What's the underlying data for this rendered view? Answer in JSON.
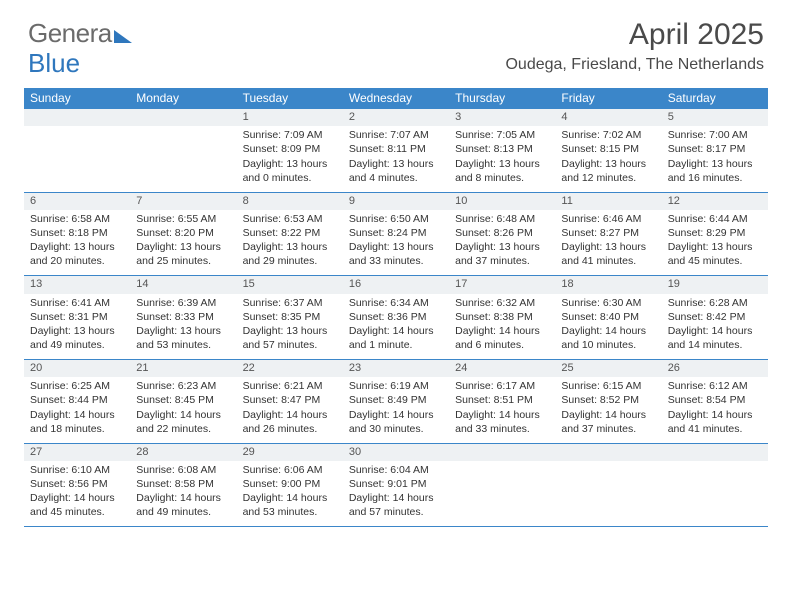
{
  "logo": {
    "text1": "Genera",
    "text2": "Blue"
  },
  "header": {
    "month_title": "April 2025",
    "location": "Oudega, Friesland, The Netherlands"
  },
  "style": {
    "header_bg": "#3b86c9",
    "header_text": "#ffffff",
    "daynum_bg": "#eef1f3",
    "border_color": "#3b86c9",
    "body_text": "#333333",
    "title_color": "#4a4a4a",
    "logo_blue": "#2f77bd",
    "page_bg": "#ffffff",
    "font_family": "Arial",
    "title_fontsize_pt": 22,
    "location_fontsize_pt": 12,
    "dayhead_fontsize_pt": 9,
    "cell_fontsize_pt": 8
  },
  "calendar": {
    "day_headers": [
      "Sunday",
      "Monday",
      "Tuesday",
      "Wednesday",
      "Thursday",
      "Friday",
      "Saturday"
    ],
    "start_day_index": 2,
    "days_in_month": 30,
    "cells": {
      "1": {
        "sunrise": "7:09 AM",
        "sunset": "8:09 PM",
        "daylight": "13 hours and 0 minutes."
      },
      "2": {
        "sunrise": "7:07 AM",
        "sunset": "8:11 PM",
        "daylight": "13 hours and 4 minutes."
      },
      "3": {
        "sunrise": "7:05 AM",
        "sunset": "8:13 PM",
        "daylight": "13 hours and 8 minutes."
      },
      "4": {
        "sunrise": "7:02 AM",
        "sunset": "8:15 PM",
        "daylight": "13 hours and 12 minutes."
      },
      "5": {
        "sunrise": "7:00 AM",
        "sunset": "8:17 PM",
        "daylight": "13 hours and 16 minutes."
      },
      "6": {
        "sunrise": "6:58 AM",
        "sunset": "8:18 PM",
        "daylight": "13 hours and 20 minutes."
      },
      "7": {
        "sunrise": "6:55 AM",
        "sunset": "8:20 PM",
        "daylight": "13 hours and 25 minutes."
      },
      "8": {
        "sunrise": "6:53 AM",
        "sunset": "8:22 PM",
        "daylight": "13 hours and 29 minutes."
      },
      "9": {
        "sunrise": "6:50 AM",
        "sunset": "8:24 PM",
        "daylight": "13 hours and 33 minutes."
      },
      "10": {
        "sunrise": "6:48 AM",
        "sunset": "8:26 PM",
        "daylight": "13 hours and 37 minutes."
      },
      "11": {
        "sunrise": "6:46 AM",
        "sunset": "8:27 PM",
        "daylight": "13 hours and 41 minutes."
      },
      "12": {
        "sunrise": "6:44 AM",
        "sunset": "8:29 PM",
        "daylight": "13 hours and 45 minutes."
      },
      "13": {
        "sunrise": "6:41 AM",
        "sunset": "8:31 PM",
        "daylight": "13 hours and 49 minutes."
      },
      "14": {
        "sunrise": "6:39 AM",
        "sunset": "8:33 PM",
        "daylight": "13 hours and 53 minutes."
      },
      "15": {
        "sunrise": "6:37 AM",
        "sunset": "8:35 PM",
        "daylight": "13 hours and 57 minutes."
      },
      "16": {
        "sunrise": "6:34 AM",
        "sunset": "8:36 PM",
        "daylight": "14 hours and 1 minute."
      },
      "17": {
        "sunrise": "6:32 AM",
        "sunset": "8:38 PM",
        "daylight": "14 hours and 6 minutes."
      },
      "18": {
        "sunrise": "6:30 AM",
        "sunset": "8:40 PM",
        "daylight": "14 hours and 10 minutes."
      },
      "19": {
        "sunrise": "6:28 AM",
        "sunset": "8:42 PM",
        "daylight": "14 hours and 14 minutes."
      },
      "20": {
        "sunrise": "6:25 AM",
        "sunset": "8:44 PM",
        "daylight": "14 hours and 18 minutes."
      },
      "21": {
        "sunrise": "6:23 AM",
        "sunset": "8:45 PM",
        "daylight": "14 hours and 22 minutes."
      },
      "22": {
        "sunrise": "6:21 AM",
        "sunset": "8:47 PM",
        "daylight": "14 hours and 26 minutes."
      },
      "23": {
        "sunrise": "6:19 AM",
        "sunset": "8:49 PM",
        "daylight": "14 hours and 30 minutes."
      },
      "24": {
        "sunrise": "6:17 AM",
        "sunset": "8:51 PM",
        "daylight": "14 hours and 33 minutes."
      },
      "25": {
        "sunrise": "6:15 AM",
        "sunset": "8:52 PM",
        "daylight": "14 hours and 37 minutes."
      },
      "26": {
        "sunrise": "6:12 AM",
        "sunset": "8:54 PM",
        "daylight": "14 hours and 41 minutes."
      },
      "27": {
        "sunrise": "6:10 AM",
        "sunset": "8:56 PM",
        "daylight": "14 hours and 45 minutes."
      },
      "28": {
        "sunrise": "6:08 AM",
        "sunset": "8:58 PM",
        "daylight": "14 hours and 49 minutes."
      },
      "29": {
        "sunrise": "6:06 AM",
        "sunset": "9:00 PM",
        "daylight": "14 hours and 53 minutes."
      },
      "30": {
        "sunrise": "6:04 AM",
        "sunset": "9:01 PM",
        "daylight": "14 hours and 57 minutes."
      }
    },
    "labels": {
      "sunrise_prefix": "Sunrise: ",
      "sunset_prefix": "Sunset: ",
      "daylight_prefix": "Daylight: "
    }
  }
}
